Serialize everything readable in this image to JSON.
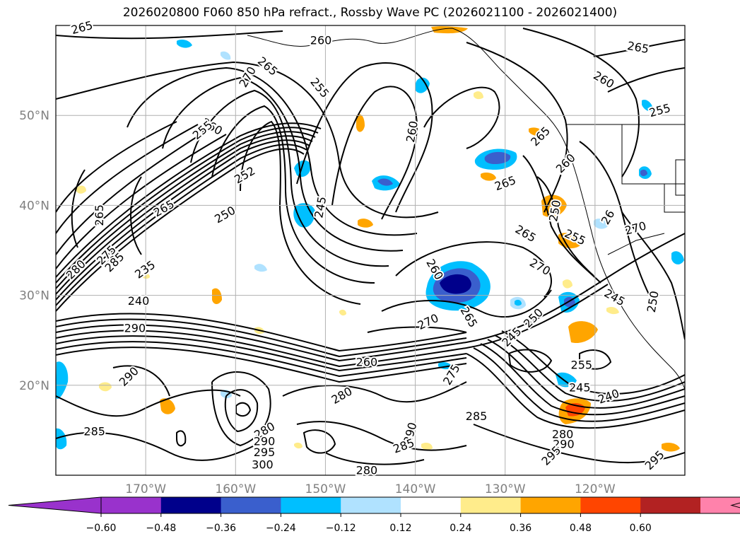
{
  "title": "2026020800 F060 850 hPa refract., Rossby Wave PC (2026021100 - 2026021400)",
  "map": {
    "lon_range": [
      -180,
      -110
    ],
    "lat_range": [
      10,
      60
    ],
    "lat_ticks": [
      {
        "value": 50,
        "label": "50°N"
      },
      {
        "value": 40,
        "label": "40°N"
      },
      {
        "value": 30,
        "label": "30°N"
      },
      {
        "value": 20,
        "label": "20°N"
      }
    ],
    "lon_ticks": [
      {
        "value": -170,
        "label": "170°W"
      },
      {
        "value": -160,
        "label": "160°W"
      },
      {
        "value": -150,
        "label": "150°W"
      },
      {
        "value": -140,
        "label": "140°W"
      },
      {
        "value": -130,
        "label": "130°W"
      },
      {
        "value": -120,
        "label": "120°W"
      }
    ],
    "contour_labels": [
      {
        "text": "265",
        "lon": -177.1,
        "lat": 59.8,
        "rot": -15
      },
      {
        "text": "260",
        "lon": -150.5,
        "lat": 58.4,
        "rot": 0
      },
      {
        "text": "265",
        "lon": -115.2,
        "lat": 57.6,
        "rot": 10
      },
      {
        "text": "265",
        "lon": -156.4,
        "lat": 55.5,
        "rot": 40
      },
      {
        "text": "270",
        "lon": -158.7,
        "lat": 54.3,
        "rot": -60
      },
      {
        "text": "255",
        "lon": -150.6,
        "lat": 53.1,
        "rot": 50
      },
      {
        "text": "260",
        "lon": -119.0,
        "lat": 54.0,
        "rot": 30
      },
      {
        "text": "255",
        "lon": -112.8,
        "lat": 50.6,
        "rot": -15
      },
      {
        "text": "260",
        "lon": -162.6,
        "lat": 48.8,
        "rot": 30
      },
      {
        "text": "255",
        "lon": -163.7,
        "lat": 48.4,
        "rot": -40
      },
      {
        "text": "260",
        "lon": -140.4,
        "lat": 48.2,
        "rot": -80
      },
      {
        "text": "265",
        "lon": -126.1,
        "lat": 47.7,
        "rot": -45
      },
      {
        "text": "260",
        "lon": -123.3,
        "lat": 44.7,
        "rot": -45
      },
      {
        "text": "265",
        "lon": -130.0,
        "lat": 42.5,
        "rot": -20
      },
      {
        "text": "252",
        "lon": -159.0,
        "lat": 43.4,
        "rot": -30
      },
      {
        "text": "265",
        "lon": -175.2,
        "lat": 38.9,
        "rot": -90
      },
      {
        "text": "265",
        "lon": -168.0,
        "lat": 39.7,
        "rot": -30
      },
      {
        "text": "250",
        "lon": -161.2,
        "lat": 39.0,
        "rot": -30
      },
      {
        "text": "245",
        "lon": -150.6,
        "lat": 39.8,
        "rot": -80
      },
      {
        "text": "250",
        "lon": -124.5,
        "lat": 39.4,
        "rot": -80
      },
      {
        "text": "26",
        "lon": -118.6,
        "lat": 38.7,
        "rot": -60
      },
      {
        "text": "270",
        "lon": -115.5,
        "lat": 37.5,
        "rot": -15
      },
      {
        "text": "265",
        "lon": -127.7,
        "lat": 36.9,
        "rot": 30
      },
      {
        "text": "255",
        "lon": -122.2,
        "lat": 36.5,
        "rot": 25
      },
      {
        "text": "275",
        "lon": -174.4,
        "lat": 34.5,
        "rot": -45
      },
      {
        "text": "285",
        "lon": -173.5,
        "lat": 33.7,
        "rot": -45
      },
      {
        "text": "280",
        "lon": -177.8,
        "lat": 32.9,
        "rot": -45
      },
      {
        "text": "235",
        "lon": -170.1,
        "lat": 32.9,
        "rot": -35
      },
      {
        "text": "270",
        "lon": -126.1,
        "lat": 33.2,
        "rot": 30
      },
      {
        "text": "260",
        "lon": -137.8,
        "lat": 32.9,
        "rot": 60
      },
      {
        "text": "245",
        "lon": -117.8,
        "lat": 29.8,
        "rot": 30
      },
      {
        "text": "240",
        "lon": -170.8,
        "lat": 29.4,
        "rot": 0
      },
      {
        "text": "265",
        "lon": -134.0,
        "lat": 27.6,
        "rot": 60
      },
      {
        "text": "270",
        "lon": -138.6,
        "lat": 27.1,
        "rot": -25
      },
      {
        "text": "250",
        "lon": -126.9,
        "lat": 27.5,
        "rot": -45
      },
      {
        "text": "250",
        "lon": -113.6,
        "lat": 29.3,
        "rot": -80
      },
      {
        "text": "290",
        "lon": -171.2,
        "lat": 26.4,
        "rot": 0
      },
      {
        "text": "245",
        "lon": -129.3,
        "lat": 25.4,
        "rot": -45
      },
      {
        "text": "260",
        "lon": -145.4,
        "lat": 22.6,
        "rot": 0
      },
      {
        "text": "255",
        "lon": -121.5,
        "lat": 22.3,
        "rot": 0
      },
      {
        "text": "275",
        "lon": -136.0,
        "lat": 21.2,
        "rot": -60
      },
      {
        "text": "290",
        "lon": -171.9,
        "lat": 21.0,
        "rot": -45
      },
      {
        "text": "245",
        "lon": -121.7,
        "lat": 19.8,
        "rot": 0
      },
      {
        "text": "280",
        "lon": -148.2,
        "lat": 18.9,
        "rot": -30
      },
      {
        "text": "240",
        "lon": -118.5,
        "lat": 18.8,
        "rot": -20
      },
      {
        "text": "285",
        "lon": -133.2,
        "lat": 16.6,
        "rot": 0
      },
      {
        "text": "285",
        "lon": -175.7,
        "lat": 14.9,
        "rot": 0
      },
      {
        "text": "280",
        "lon": -156.8,
        "lat": 15.0,
        "rot": -30
      },
      {
        "text": "280",
        "lon": -123.6,
        "lat": 14.6,
        "rot": 0
      },
      {
        "text": "290",
        "lon": -140.6,
        "lat": 14.7,
        "rot": -75
      },
      {
        "text": "290",
        "lon": -156.8,
        "lat": 13.8,
        "rot": 0
      },
      {
        "text": "290",
        "lon": -123.5,
        "lat": 13.5,
        "rot": 0
      },
      {
        "text": "285",
        "lon": -141.3,
        "lat": 13.3,
        "rot": -20
      },
      {
        "text": "295",
        "lon": -156.8,
        "lat": 12.6,
        "rot": 0
      },
      {
        "text": "295",
        "lon": -124.9,
        "lat": 12.2,
        "rot": -45
      },
      {
        "text": "295",
        "lon": -113.4,
        "lat": 11.7,
        "rot": -45
      },
      {
        "text": "300",
        "lon": -157.0,
        "lat": 11.2,
        "rot": 0
      },
      {
        "text": "280",
        "lon": -145.4,
        "lat": 10.6,
        "rot": 0
      }
    ]
  },
  "colorbar": {
    "colors": [
      "#9932cc",
      "#9932cc",
      "#00008b",
      "#3a5fcd",
      "#00bfff",
      "#b0e2ff",
      "#ffffff",
      "#ffec8b",
      "#ffa500",
      "#ff4500",
      "#b22222",
      "#ff82ab",
      "#ff82ab"
    ],
    "tick_labels": [
      "−0.60",
      "−0.48",
      "−0.36",
      "−0.24",
      "−0.12",
      "0.12",
      "0.24",
      "0.36",
      "0.48",
      "0.60"
    ]
  }
}
